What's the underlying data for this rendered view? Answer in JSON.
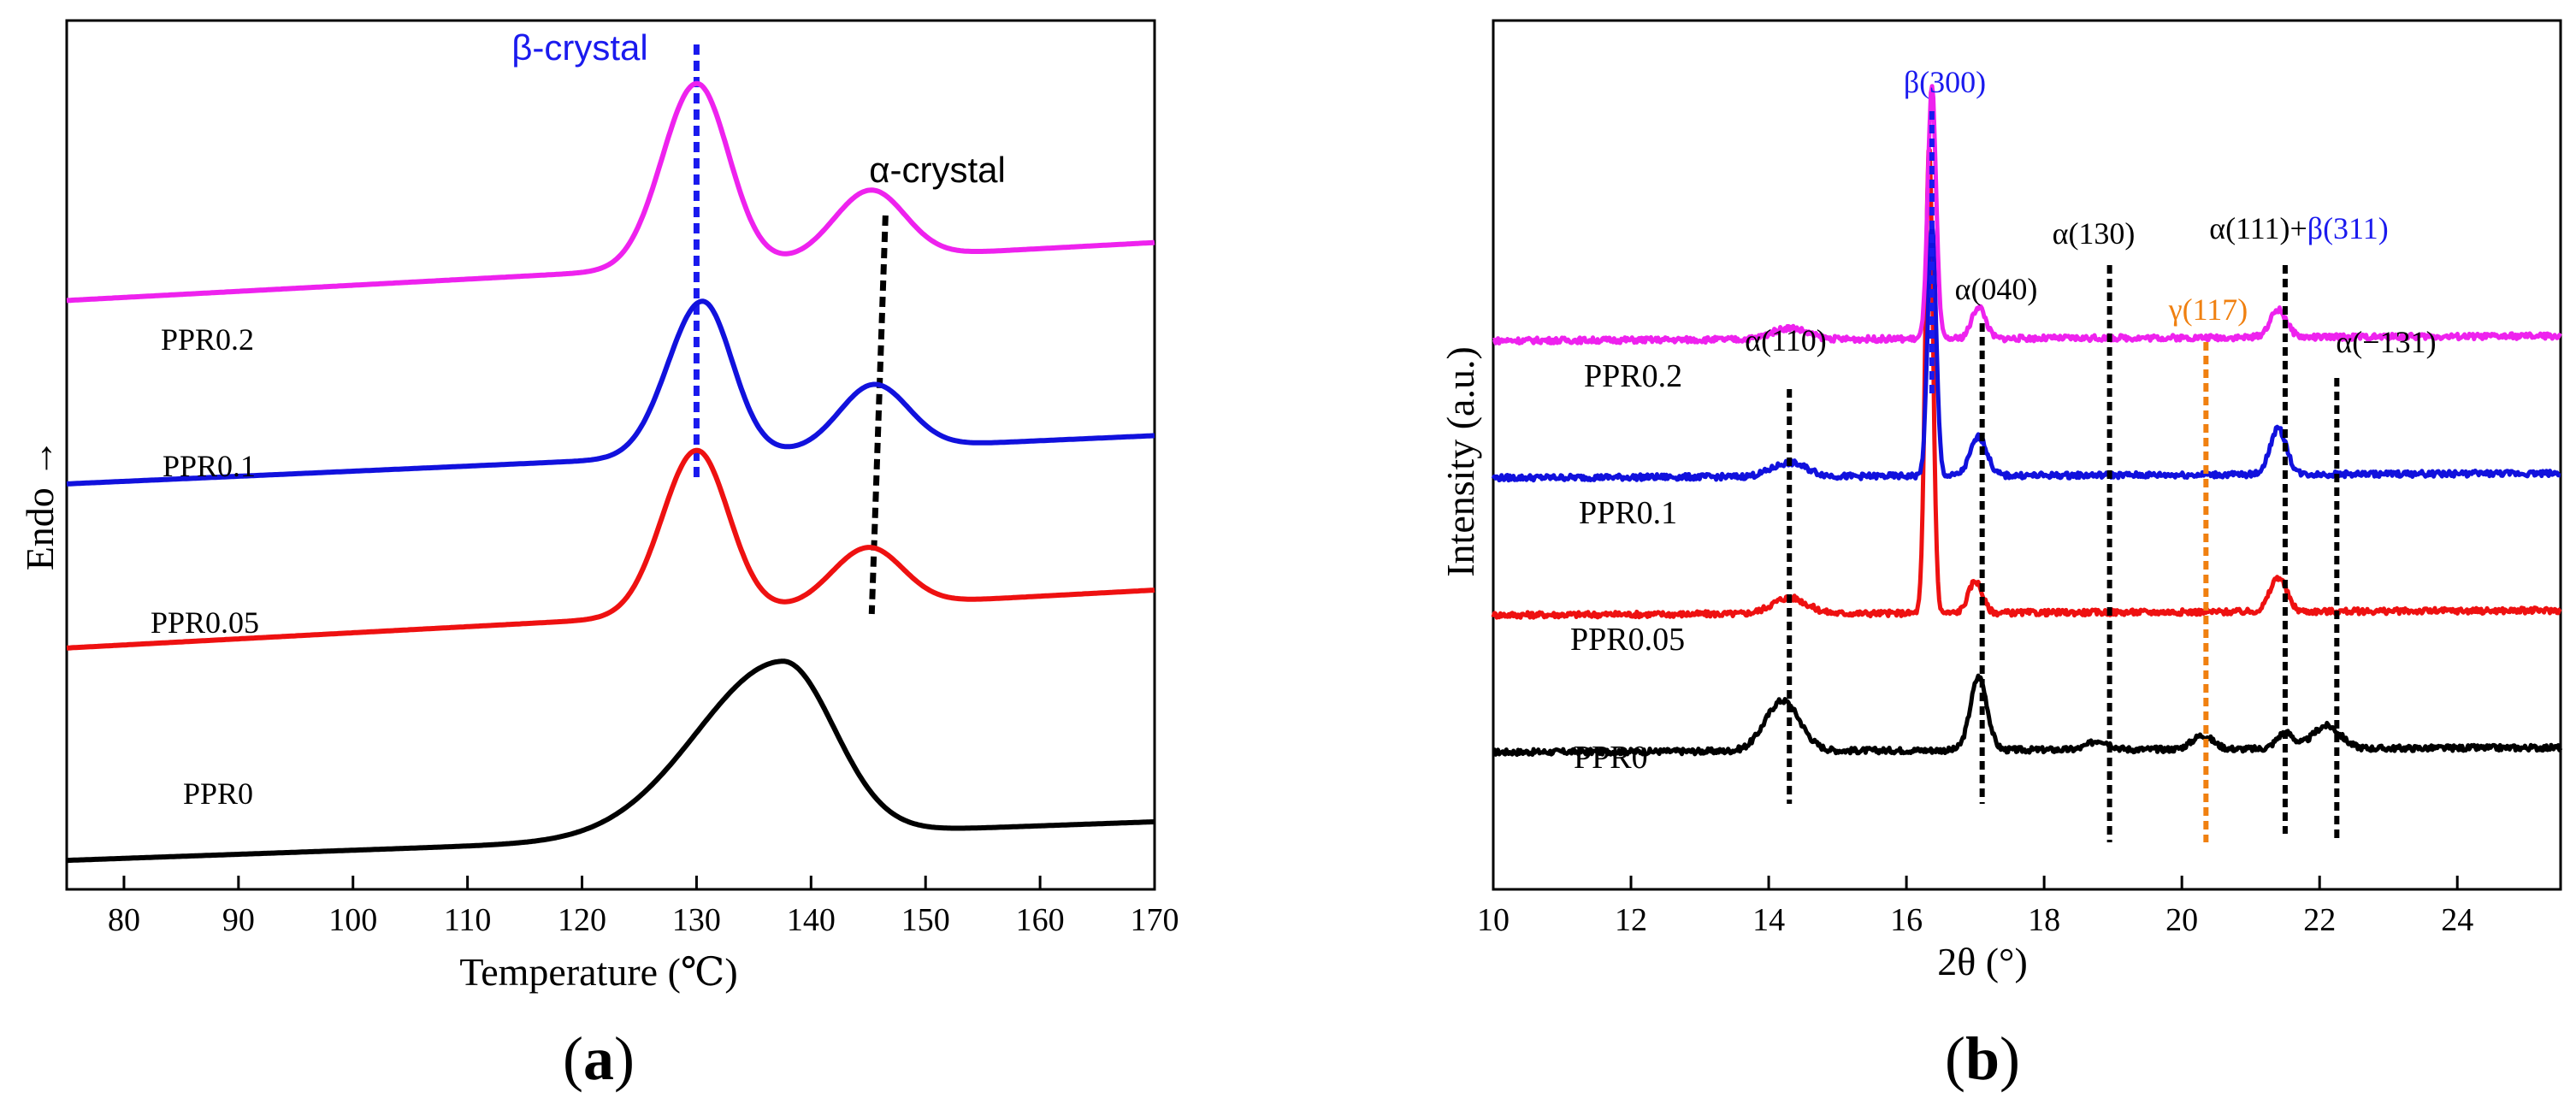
{
  "colors": {
    "axis": "#000000",
    "PPR0": "#000000",
    "PPR0.05": "#ee1111",
    "PPR0.1": "#1111dd",
    "PPR0.2": "#ee22ee",
    "beta_marker": "#1a1aee",
    "alpha_marker": "#000000",
    "gamma_marker": "#f08010"
  },
  "chart_data": [
    {
      "type": "line",
      "panel_label": "a",
      "title": "",
      "xlabel": "Temperature (℃)",
      "ylabel": "Endo →",
      "xlim": [
        75,
        170
      ],
      "x_ticks": [
        80,
        90,
        100,
        110,
        120,
        130,
        140,
        150,
        160,
        170
      ],
      "y_ticks": [],
      "grid": false,
      "series": [
        {
          "name": "PPR0",
          "offset": 0.0,
          "baseline_start": 0.0,
          "baseline_end": 0.2,
          "peaks": [
            {
              "x": 137.5,
              "height": 0.9,
              "width_left": 7.5,
              "width_right": 4.5
            }
          ]
        },
        {
          "name": "PPR0.05",
          "offset": 1.1,
          "baseline_start": 0.0,
          "baseline_end": 0.3,
          "peaks": [
            {
              "x": 130,
              "height": 0.85,
              "width_left": 3.0,
              "width_right": 2.8
            },
            {
              "x": 145,
              "height": 0.3,
              "width_left": 3.2,
              "width_right": 3.0
            }
          ]
        },
        {
          "name": "PPR0.1",
          "offset": 1.95,
          "baseline_start": 0.0,
          "baseline_end": 0.25,
          "peaks": [
            {
              "x": 130.5,
              "height": 0.8,
              "width_left": 3.0,
              "width_right": 2.6
            },
            {
              "x": 145.5,
              "height": 0.33,
              "width_left": 3.0,
              "width_right": 3.0
            }
          ]
        },
        {
          "name": "PPR0.2",
          "offset": 2.9,
          "baseline_start": 0.0,
          "baseline_end": 0.3,
          "peaks": [
            {
              "x": 130,
              "height": 0.95,
              "width_left": 3.0,
              "width_right": 2.8
            },
            {
              "x": 145.2,
              "height": 0.35,
              "width_left": 3.2,
              "width_right": 3.0
            }
          ]
        }
      ],
      "annotations": [
        {
          "text": "β-crystal",
          "color": "#1a1aee",
          "type": "vline",
          "x1": 130,
          "x2": 130
        },
        {
          "text": "α-crystal",
          "color": "#000000",
          "type": "vline",
          "x1": 146.5,
          "x2": 145.3
        }
      ]
    },
    {
      "type": "line",
      "panel_label": "b",
      "title": "",
      "xlabel": "2θ (°)",
      "ylabel": "Intensity (a.u.)",
      "xlim": [
        10,
        25.5
      ],
      "x_ticks": [
        10,
        12,
        14,
        16,
        18,
        20,
        22,
        24
      ],
      "y_ticks": [],
      "grid": false,
      "series": [
        {
          "name": "PPR0",
          "offset": 0.0,
          "peaks": [
            {
              "x": 14.2,
              "height": 0.22,
              "width": 0.25
            },
            {
              "x": 17.05,
              "height": 0.32,
              "width": 0.12
            },
            {
              "x": 18.8,
              "height": 0.04,
              "width": 0.15
            },
            {
              "x": 20.3,
              "height": 0.06,
              "width": 0.15
            },
            {
              "x": 21.5,
              "height": 0.07,
              "width": 0.12
            },
            {
              "x": 22.1,
              "height": 0.1,
              "width": 0.2
            }
          ]
        },
        {
          "name": "PPR0.05",
          "offset": 0.6,
          "peaks": [
            {
              "x": 14.3,
              "height": 0.07,
              "width": 0.25
            },
            {
              "x": 16.33,
              "height": 2.05,
              "width": 0.055
            },
            {
              "x": 17.0,
              "height": 0.14,
              "width": 0.1
            },
            {
              "x": 21.4,
              "height": 0.15,
              "width": 0.12
            }
          ]
        },
        {
          "name": "PPR0.1",
          "offset": 1.2,
          "peaks": [
            {
              "x": 14.3,
              "height": 0.06,
              "width": 0.25
            },
            {
              "x": 16.37,
              "height": 1.1,
              "width": 0.06
            },
            {
              "x": 17.05,
              "height": 0.17,
              "width": 0.12
            },
            {
              "x": 21.4,
              "height": 0.2,
              "width": 0.12
            }
          ]
        },
        {
          "name": "PPR0.2",
          "offset": 1.8,
          "peaks": [
            {
              "x": 14.3,
              "height": 0.05,
              "width": 0.25
            },
            {
              "x": 16.37,
              "height": 1.1,
              "width": 0.06
            },
            {
              "x": 17.05,
              "height": 0.14,
              "width": 0.1
            },
            {
              "x": 21.4,
              "height": 0.12,
              "width": 0.12
            }
          ]
        }
      ],
      "reference_lines": [
        {
          "x": 14.3,
          "color": "#000000"
        },
        {
          "x": 16.37,
          "color": "#1a1aee"
        },
        {
          "x": 17.1,
          "color": "#000000"
        },
        {
          "x": 18.95,
          "color": "#000000"
        },
        {
          "x": 20.35,
          "color": "#f08010"
        },
        {
          "x": 21.5,
          "color": "#000000"
        },
        {
          "x": 22.25,
          "color": "#000000"
        }
      ],
      "annotations": [
        {
          "text": "α(110)",
          "color": "#000000"
        },
        {
          "text": "β(300)",
          "color": "#1a1aee"
        },
        {
          "text": "α(040)",
          "color": "#000000"
        },
        {
          "text": "α(130)",
          "color": "#000000"
        },
        {
          "text": "γ(117)",
          "color": "#f08010"
        },
        {
          "text": "α(111)+",
          "color": "#000000"
        },
        {
          "text": "β(311)",
          "color": "#1a1aee"
        },
        {
          "text": "α(−131)",
          "color": "#000000"
        }
      ]
    }
  ]
}
